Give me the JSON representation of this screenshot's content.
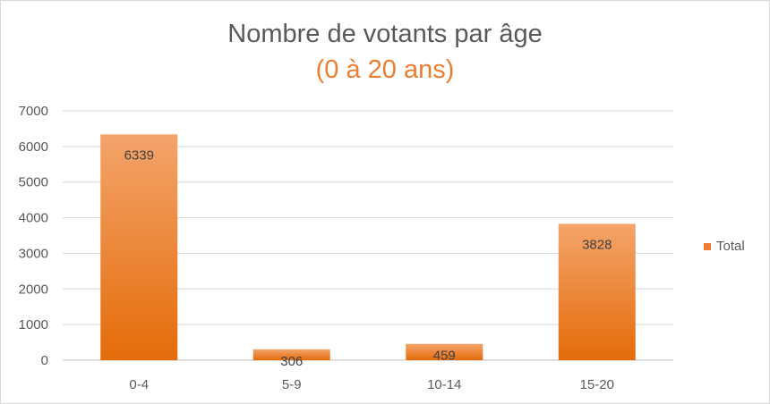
{
  "chart_data": {
    "type": "bar",
    "title": "Nombre de votants par âge",
    "subtitle": "(0 à 20 ans)",
    "categories": [
      "0-4",
      "5-9",
      "10-14",
      "15-20"
    ],
    "series": [
      {
        "name": "Total",
        "values": [
          6339,
          306,
          459,
          3828
        ],
        "color": "#ed7d31"
      }
    ],
    "ylim": [
      0,
      7000
    ],
    "yticks": [
      0,
      1000,
      2000,
      3000,
      4000,
      5000,
      6000,
      7000
    ],
    "grid": true,
    "legend": "right",
    "data_labels": true
  },
  "colors": {
    "bar": "#ed7d31",
    "bar_dark": "#e46c0a",
    "bar_light": "#f4a46b",
    "grid": "#d9d9d9",
    "title": "#595959",
    "subtitle": "#ed7d31"
  }
}
